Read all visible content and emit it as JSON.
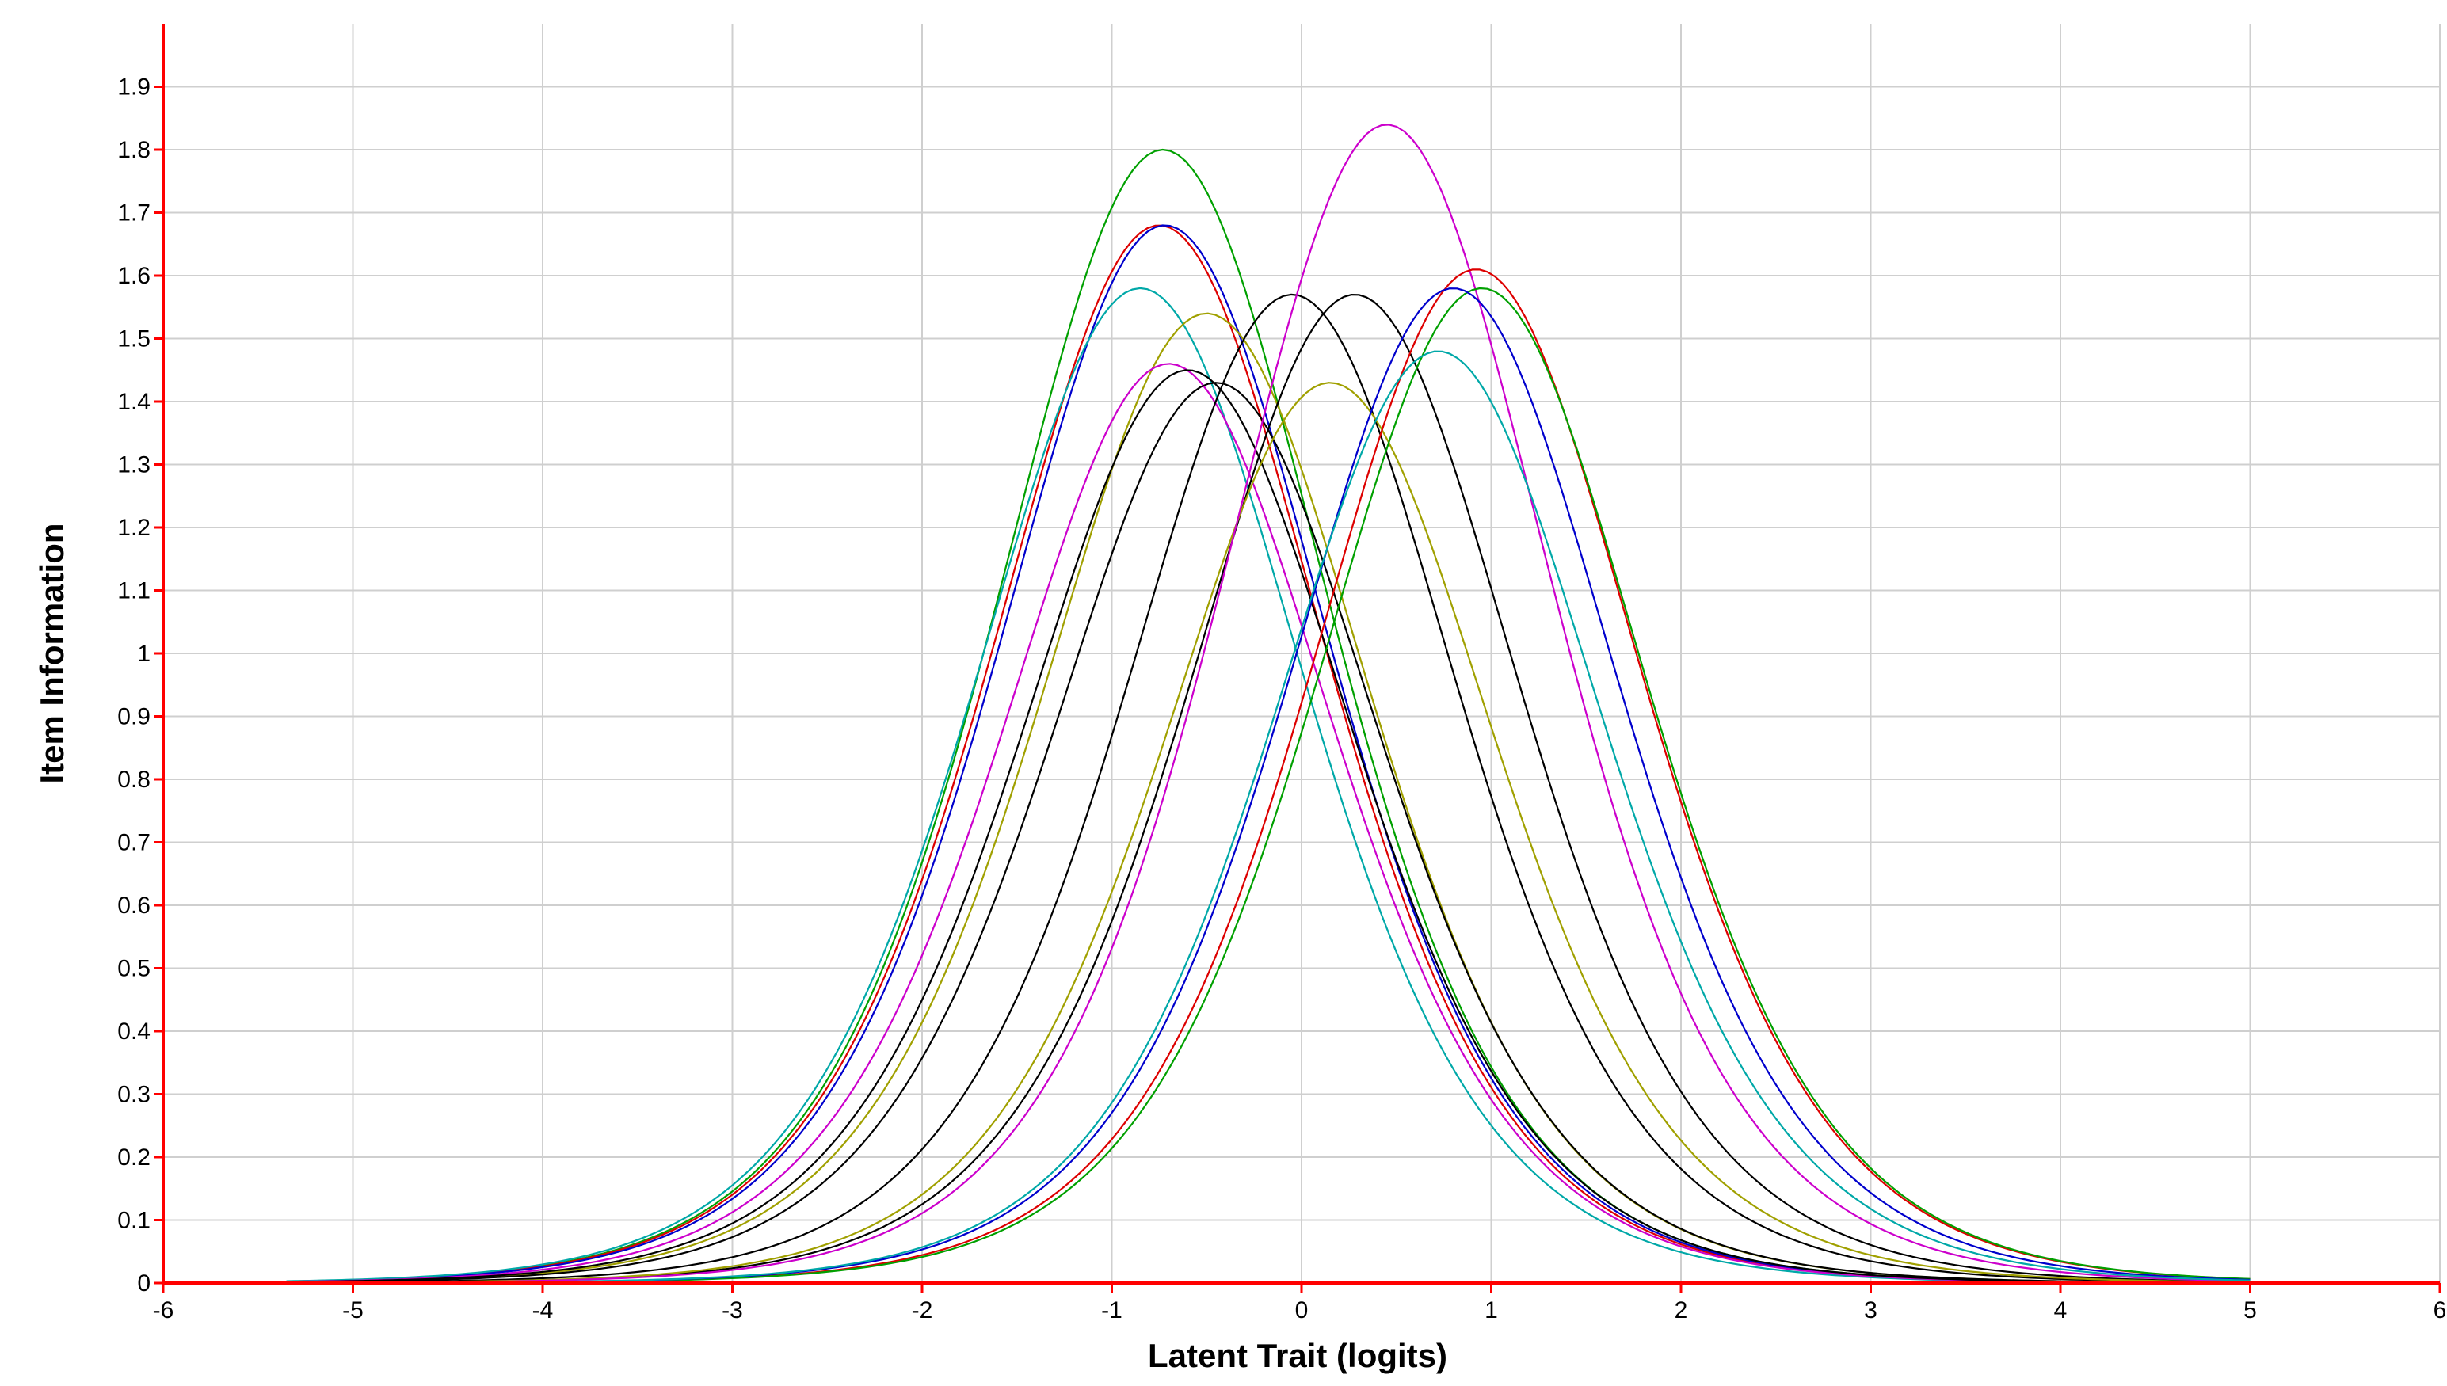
{
  "chart_data": {
    "type": "line",
    "title": "",
    "xlabel": "Latent Trait (logits)",
    "ylabel": "Item Information",
    "xlim": [
      -6,
      6
    ],
    "ylim": [
      0,
      2
    ],
    "x_ticks": [
      "-6",
      "-5",
      "-4",
      "-3",
      "-2",
      "-1",
      "0",
      "1",
      "2",
      "3",
      "4",
      "5",
      "6"
    ],
    "y_ticks": [
      "0",
      "0.1",
      "0.2",
      "0.3",
      "0.4",
      "0.5",
      "0.6",
      "0.7",
      "0.8",
      "0.9",
      "1",
      "1.1",
      "1.2",
      "1.3",
      "1.4",
      "1.5",
      "1.6",
      "1.7",
      "1.8",
      "1.9"
    ],
    "grid": true,
    "legend": "none",
    "x_range": [
      -5.35,
      5.0
    ],
    "series": [
      {
        "peak_x": -0.73,
        "peak_y": 1.8,
        "color": "#00a000"
      },
      {
        "peak_x": -0.75,
        "peak_y": 1.68,
        "color": "#dd0000"
      },
      {
        "peak_x": -0.72,
        "peak_y": 1.68,
        "color": "#0000cc"
      },
      {
        "peak_x": -0.85,
        "peak_y": 1.58,
        "color": "#00a8a8"
      },
      {
        "peak_x": -0.5,
        "peak_y": 1.54,
        "color": "#a0a000"
      },
      {
        "peak_x": -0.7,
        "peak_y": 1.46,
        "color": "#cc00cc"
      },
      {
        "peak_x": -0.6,
        "peak_y": 1.45,
        "color": "#000000"
      },
      {
        "peak_x": -0.45,
        "peak_y": 1.43,
        "color": "#000000"
      },
      {
        "peak_x": -0.05,
        "peak_y": 1.57,
        "color": "#000000"
      },
      {
        "peak_x": 0.28,
        "peak_y": 1.57,
        "color": "#000000"
      },
      {
        "peak_x": 0.15,
        "peak_y": 1.43,
        "color": "#a0a000"
      },
      {
        "peak_x": 0.45,
        "peak_y": 1.84,
        "color": "#cc00cc"
      },
      {
        "peak_x": 0.92,
        "peak_y": 1.61,
        "color": "#dd0000"
      },
      {
        "peak_x": 0.95,
        "peak_y": 1.58,
        "color": "#00a000"
      },
      {
        "peak_x": 0.8,
        "peak_y": 1.58,
        "color": "#0000cc"
      },
      {
        "peak_x": 0.72,
        "peak_y": 1.48,
        "color": "#00a8a8"
      }
    ]
  }
}
